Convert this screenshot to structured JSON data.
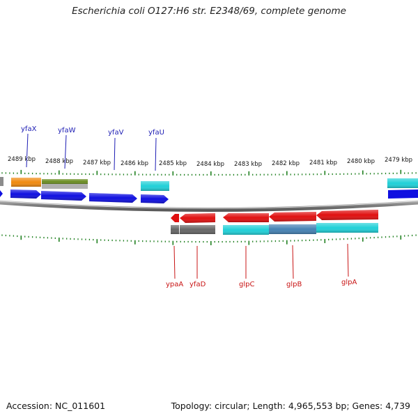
{
  "title": "Escherichia coli O127:H6 str. E2348/69, complete genome",
  "footer": {
    "accession": "Accession: NC_011601",
    "stats": "Topology: circular; Length: 4,965,553 bp; Genes: 4,739"
  },
  "colors": {
    "forward_cds": "#1010e0",
    "reverse_cds": "#e01010",
    "cog_orange": "#f08a10",
    "cog_olive": "#6b8e23",
    "cog_cyan": "#20d0d8",
    "cog_steel": "#4682b4",
    "cog_gray": "#666666",
    "tick_green": "#208020",
    "backbone_gray": "#8c8c8c"
  },
  "scale_labels": [
    "2489 kbp",
    "2488 kbp",
    "2487 kbp",
    "2486 kbp",
    "2485 kbp",
    "2484 kbp",
    "2483 kbp",
    "2482 kbp",
    "2481 kbp",
    "2480 kbp",
    "2479 kbp"
  ],
  "forward_genes": [
    {
      "name": "yfaX"
    },
    {
      "name": "yfaW"
    },
    {
      "name": "yfaV"
    },
    {
      "name": "yfaU"
    }
  ],
  "reverse_genes": [
    {
      "name": "ypaA"
    },
    {
      "name": "yfaD"
    },
    {
      "name": "glpC"
    },
    {
      "name": "glpB"
    },
    {
      "name": "glpA"
    }
  ]
}
